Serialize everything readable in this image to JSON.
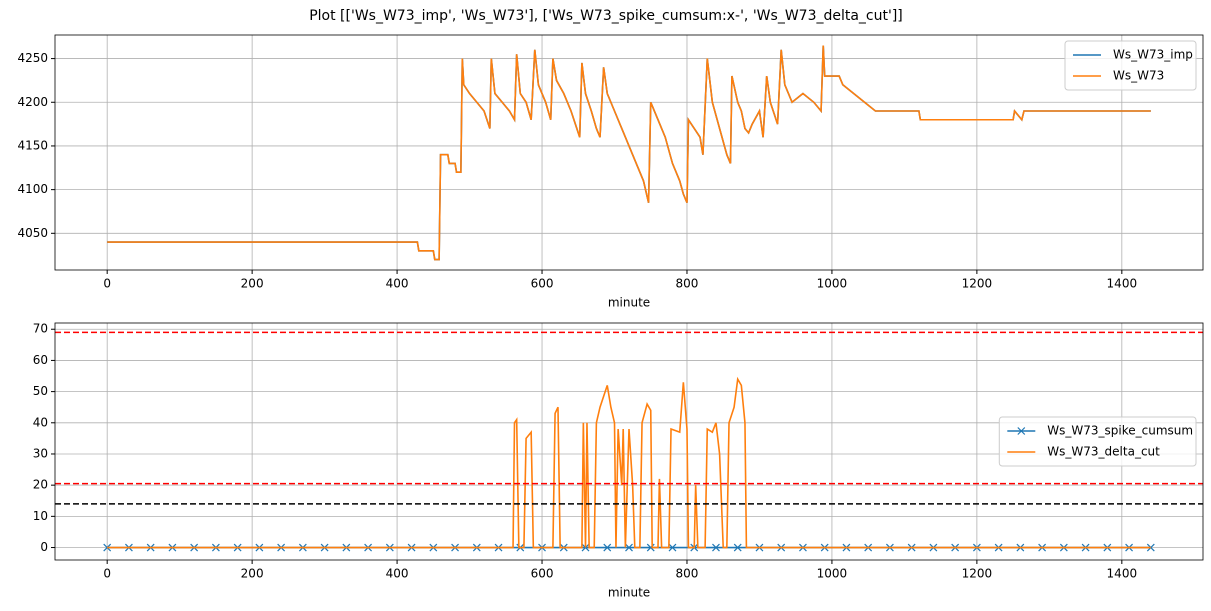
{
  "title": "Plot [['Ws_W73_imp', 'Ws_W73'], ['Ws_W73_spike_cumsum:x-', 'Ws_W73_delta_cut']]",
  "chart_data": [
    {
      "type": "line",
      "xlabel": "minute",
      "grid": true,
      "legend": "upper right",
      "xlim": [
        -72,
        1512
      ],
      "xticks": [
        0,
        200,
        400,
        600,
        800,
        1000,
        1200,
        1400
      ],
      "ylim": [
        4008,
        4277
      ],
      "yticks": [
        4050,
        4100,
        4150,
        4200,
        4250
      ],
      "x": [
        0,
        428,
        430,
        450,
        452,
        458,
        460,
        470,
        472,
        480,
        482,
        488,
        490,
        492,
        500,
        510,
        520,
        528,
        530,
        535,
        545,
        555,
        562,
        565,
        570,
        578,
        585,
        590,
        595,
        605,
        612,
        615,
        620,
        630,
        640,
        648,
        652,
        655,
        660,
        668,
        675,
        680,
        685,
        690,
        700,
        710,
        715,
        720,
        730,
        740,
        747,
        750,
        760,
        770,
        780,
        790,
        795,
        800,
        802,
        810,
        818,
        822,
        828,
        835,
        845,
        855,
        860,
        862,
        870,
        875,
        880,
        885,
        890,
        900,
        905,
        910,
        915,
        925,
        930,
        935,
        945,
        960,
        975,
        985,
        988,
        990,
        1010,
        1015,
        1030,
        1045,
        1060,
        1120,
        1122,
        1250,
        1252,
        1262,
        1265,
        1440
      ],
      "series": [
        {
          "name": "Ws_W73_imp",
          "color": "#1f77b4",
          "values": [
            4040,
            4040,
            4030,
            4030,
            4020,
            4020,
            4140,
            4140,
            4130,
            4130,
            4120,
            4120,
            4250,
            4220,
            4210,
            4200,
            4190,
            4170,
            4250,
            4210,
            4200,
            4190,
            4180,
            4255,
            4210,
            4200,
            4180,
            4260,
            4220,
            4200,
            4180,
            4250,
            4225,
            4210,
            4190,
            4170,
            4160,
            4245,
            4210,
            4190,
            4170,
            4160,
            4240,
            4210,
            4190,
            4170,
            4160,
            4150,
            4130,
            4110,
            4085,
            4200,
            4180,
            4160,
            4130,
            4110,
            4095,
            4085,
            4180,
            4170,
            4160,
            4140,
            4250,
            4200,
            4170,
            4140,
            4130,
            4230,
            4200,
            4190,
            4170,
            4165,
            4175,
            4190,
            4160,
            4230,
            4200,
            4175,
            4260,
            4220,
            4200,
            4210,
            4200,
            4190,
            4265,
            4230,
            4230,
            4220,
            4210,
            4200,
            4190,
            4190,
            4180,
            4180,
            4190,
            4180,
            4190,
            4190
          ]
        },
        {
          "name": "Ws_W73",
          "color": "#ff7f0e",
          "values": [
            4040,
            4040,
            4030,
            4030,
            4020,
            4020,
            4140,
            4140,
            4130,
            4130,
            4120,
            4120,
            4250,
            4220,
            4210,
            4200,
            4190,
            4170,
            4250,
            4210,
            4200,
            4190,
            4180,
            4255,
            4210,
            4200,
            4180,
            4260,
            4220,
            4200,
            4180,
            4250,
            4225,
            4210,
            4190,
            4170,
            4160,
            4245,
            4210,
            4190,
            4170,
            4160,
            4240,
            4210,
            4190,
            4170,
            4160,
            4150,
            4130,
            4110,
            4085,
            4200,
            4180,
            4160,
            4130,
            4110,
            4095,
            4085,
            4180,
            4170,
            4160,
            4140,
            4250,
            4200,
            4170,
            4140,
            4130,
            4230,
            4200,
            4190,
            4170,
            4165,
            4175,
            4190,
            4160,
            4230,
            4200,
            4175,
            4260,
            4220,
            4200,
            4210,
            4200,
            4190,
            4265,
            4230,
            4230,
            4220,
            4210,
            4200,
            4190,
            4190,
            4180,
            4180,
            4190,
            4180,
            4190,
            4190
          ]
        }
      ]
    },
    {
      "type": "line",
      "xlabel": "minute",
      "grid": true,
      "legend": "center right",
      "xlim": [
        -72,
        1512
      ],
      "xticks": [
        0,
        200,
        400,
        600,
        800,
        1000,
        1200,
        1400
      ],
      "ylim": [
        -4,
        72
      ],
      "yticks": [
        0,
        10,
        20,
        30,
        40,
        50,
        60,
        70
      ],
      "hlines": [
        {
          "value": 69,
          "color": "red"
        },
        {
          "value": 20.5,
          "color": "red"
        },
        {
          "value": 14,
          "color": "black"
        }
      ],
      "series": [
        {
          "name": "Ws_W73_spike_cumsum",
          "color": "#1f77b4",
          "marker": "x",
          "x": [
            0,
            30,
            60,
            90,
            120,
            150,
            180,
            210,
            240,
            270,
            300,
            330,
            360,
            390,
            420,
            450,
            480,
            510,
            540,
            570,
            600,
            630,
            660,
            690,
            720,
            750,
            780,
            810,
            840,
            870,
            900,
            930,
            960,
            990,
            1020,
            1050,
            1080,
            1110,
            1140,
            1170,
            1200,
            1230,
            1260,
            1290,
            1320,
            1350,
            1380,
            1410,
            1440
          ],
          "values": [
            0,
            0,
            0,
            0,
            0,
            0,
            0,
            0,
            0,
            0,
            0,
            0,
            0,
            0,
            0,
            0,
            0,
            0,
            0,
            0,
            0,
            0,
            0,
            0,
            0,
            0,
            0,
            0,
            0,
            0,
            0,
            0,
            0,
            0,
            0,
            0,
            0,
            0,
            0,
            0,
            0,
            0,
            0,
            0,
            0,
            0,
            0,
            0,
            0
          ]
        },
        {
          "name": "Ws_W73_delta_cut",
          "color": "#ff7f0e",
          "x": [
            0,
            560,
            562,
            565,
            568,
            575,
            578,
            585,
            588,
            615,
            618,
            622,
            625,
            655,
            657,
            660,
            662,
            665,
            672,
            675,
            680,
            690,
            695,
            700,
            702,
            705,
            710,
            712,
            715,
            720,
            725,
            728,
            735,
            738,
            745,
            750,
            752,
            760,
            762,
            765,
            775,
            778,
            790,
            795,
            800,
            802,
            810,
            812,
            815,
            825,
            828,
            835,
            840,
            845,
            850,
            855,
            858,
            865,
            870,
            875,
            880,
            882,
            1440
          ],
          "values": [
            0,
            0,
            40,
            41,
            0,
            0,
            35,
            37,
            0,
            0,
            43,
            45,
            0,
            0,
            40,
            0,
            40,
            0,
            0,
            40,
            45,
            52,
            45,
            40,
            0,
            38,
            20,
            38,
            0,
            38,
            20,
            0,
            0,
            40,
            46,
            44,
            0,
            0,
            22,
            0,
            0,
            38,
            37,
            53,
            38,
            0,
            0,
            20,
            0,
            0,
            38,
            37,
            40,
            30,
            0,
            0,
            40,
            45,
            54,
            52,
            40,
            0,
            0
          ]
        }
      ]
    }
  ]
}
